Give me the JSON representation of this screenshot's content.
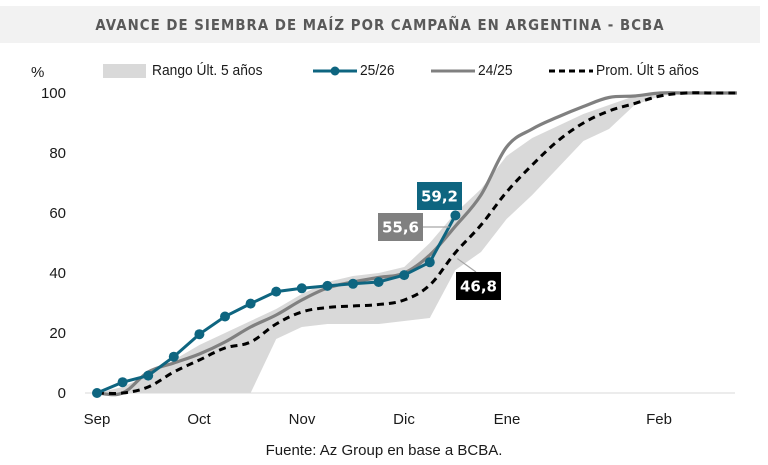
{
  "header": {
    "title": "AVANCE DE SIEMBRA DE MAÍZ POR CAMPAÑA EN ARGENTINA - BCBA"
  },
  "footer": {
    "source": "Fuente: Az Group en base a BCBA."
  },
  "colors": {
    "range_fill": "#d9d9d9",
    "s2526": "#0e6580",
    "s2425": "#808080",
    "avg": "#000000",
    "title_bg": "#f2f2f2",
    "title_text": "#595959"
  },
  "chart_data": {
    "type": "line",
    "title": "AVANCE DE SIEMBRA DE MAÍZ POR CAMPAÑA EN ARGENTINA - BCBA",
    "xlabel": "",
    "ylabel": "%",
    "ylim": [
      0,
      100
    ],
    "yticks": [
      0,
      20,
      40,
      60,
      80,
      100
    ],
    "grid": false,
    "legend_position": "top",
    "x_unit": "week index since start of September",
    "xlim": [
      0,
      25
    ],
    "x_month_ticks": [
      {
        "label": "Sep",
        "x": 0
      },
      {
        "label": "Oct",
        "x": 4
      },
      {
        "label": "Nov",
        "x": 8
      },
      {
        "label": "Dic",
        "x": 12
      },
      {
        "label": "Ene",
        "x": 16
      },
      {
        "label": "Feb",
        "x": 22
      }
    ],
    "legend": [
      {
        "name": "Rango Últ. 5 años",
        "style": "area"
      },
      {
        "name": "25/26",
        "style": "line-marker"
      },
      {
        "name": "24/25",
        "style": "line"
      },
      {
        "name": "Prom. Últ 5 años",
        "style": "dashed"
      }
    ],
    "range": {
      "name": "Rango Últ. 5 años",
      "x": [
        0,
        1,
        2,
        3,
        4,
        5,
        6,
        7,
        8,
        9,
        10,
        11,
        12,
        13,
        14,
        15,
        16,
        17,
        18,
        19,
        20,
        21,
        22,
        23,
        24,
        25
      ],
      "lower": [
        0,
        0,
        0,
        0,
        0,
        0,
        0,
        18,
        22,
        23,
        23,
        23,
        24,
        25,
        41,
        47,
        58,
        66,
        75,
        84,
        88,
        96,
        99,
        100,
        100,
        100
      ],
      "upper": [
        0,
        2,
        6,
        11,
        16,
        20,
        24,
        28,
        33,
        37,
        39,
        40,
        42,
        50,
        60,
        68,
        79,
        85,
        89,
        93,
        96,
        99,
        100,
        100,
        100,
        100
      ]
    },
    "series": [
      {
        "name": "25/26",
        "x": [
          0,
          1,
          2,
          3,
          4,
          5,
          6,
          7,
          8,
          9,
          10,
          11,
          12,
          13,
          14
        ],
        "values": [
          0,
          3.6,
          5.8,
          12.1,
          19.6,
          25.5,
          29.8,
          33.8,
          34.9,
          35.7,
          36.4,
          37.0,
          39.3,
          43.6,
          59.2
        ],
        "markers": true,
        "end_label": "59,2"
      },
      {
        "name": "24/25",
        "x": [
          0,
          1,
          2,
          3,
          4,
          5,
          6,
          7,
          8,
          9,
          10,
          11,
          12,
          13,
          14,
          15,
          16,
          17,
          18,
          19,
          20,
          21,
          22,
          23,
          24,
          25
        ],
        "values": [
          0,
          0,
          7,
          10,
          13,
          17,
          22,
          26,
          31,
          35,
          37,
          38.5,
          40,
          46,
          55.6,
          66,
          82,
          88,
          92,
          95.5,
          98.5,
          99,
          100,
          100,
          100,
          100
        ],
        "end_label": "55,6",
        "end_label_x": 14
      },
      {
        "name": "Prom. Últ 5 años",
        "x": [
          0,
          1,
          2,
          3,
          4,
          5,
          6,
          7,
          8,
          9,
          10,
          11,
          12,
          13,
          14,
          15,
          16,
          17,
          18,
          19,
          20,
          21,
          22,
          23,
          24,
          25
        ],
        "values": [
          0,
          0,
          2,
          7,
          11,
          15,
          17,
          23,
          27,
          28.5,
          29,
          29.5,
          31,
          36,
          46.8,
          56,
          67,
          76,
          84,
          90,
          94,
          96.5,
          99,
          100,
          100,
          100
        ],
        "end_label": "46,8",
        "end_label_x": 14
      }
    ],
    "data_labels": [
      {
        "series": "25/26",
        "text": "59,2"
      },
      {
        "series": "24/25",
        "text": "55,6"
      },
      {
        "series": "Prom. Últ 5 años",
        "text": "46,8"
      }
    ]
  }
}
